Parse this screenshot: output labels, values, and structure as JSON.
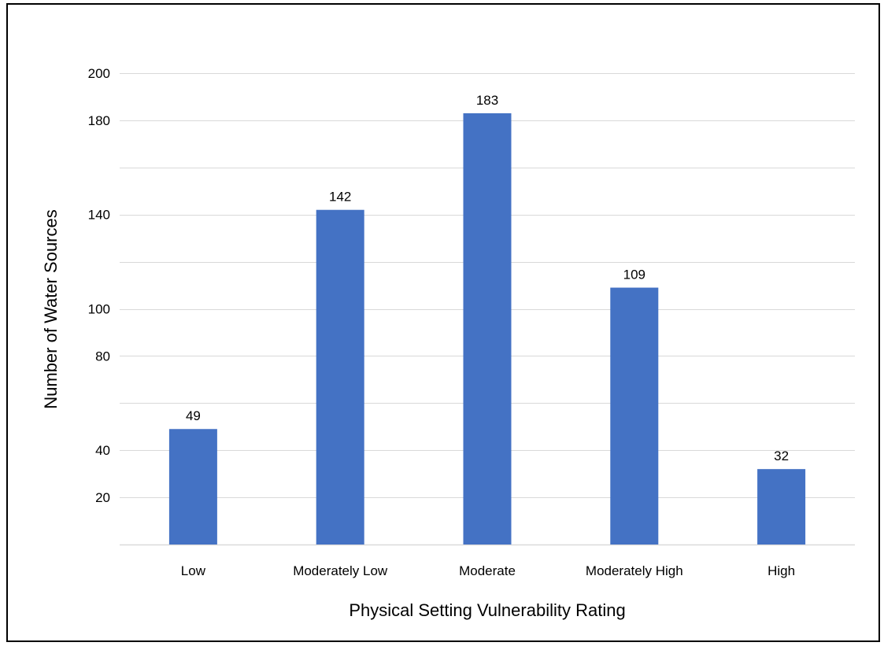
{
  "chart_data": {
    "type": "bar",
    "title": "",
    "xlabel": "Physical Setting Vulnerability Rating",
    "ylabel": "Number of Water Sources",
    "categories": [
      "Low",
      "Moderately Low",
      "Moderate",
      "Moderately High",
      "High"
    ],
    "values": [
      49,
      142,
      183,
      109,
      32
    ],
    "data_labels": [
      "49",
      "142",
      "183",
      "109",
      "32"
    ],
    "ylim": [
      0,
      200
    ],
    "gridline_values": [
      20,
      40,
      60,
      80,
      100,
      120,
      140,
      160,
      180,
      200
    ],
    "y_tick_labels": [
      {
        "value": 20,
        "label": "20"
      },
      {
        "value": 40,
        "label": "40"
      },
      {
        "value": 80,
        "label": "80"
      },
      {
        "value": 100,
        "label": "100"
      },
      {
        "value": 140,
        "label": "140"
      },
      {
        "value": 180,
        "label": "180"
      },
      {
        "value": 200,
        "label": "200"
      }
    ],
    "grid": true,
    "legend": "none",
    "bar_color": "#4472c4",
    "gridline_color": "#d9d9d9"
  }
}
